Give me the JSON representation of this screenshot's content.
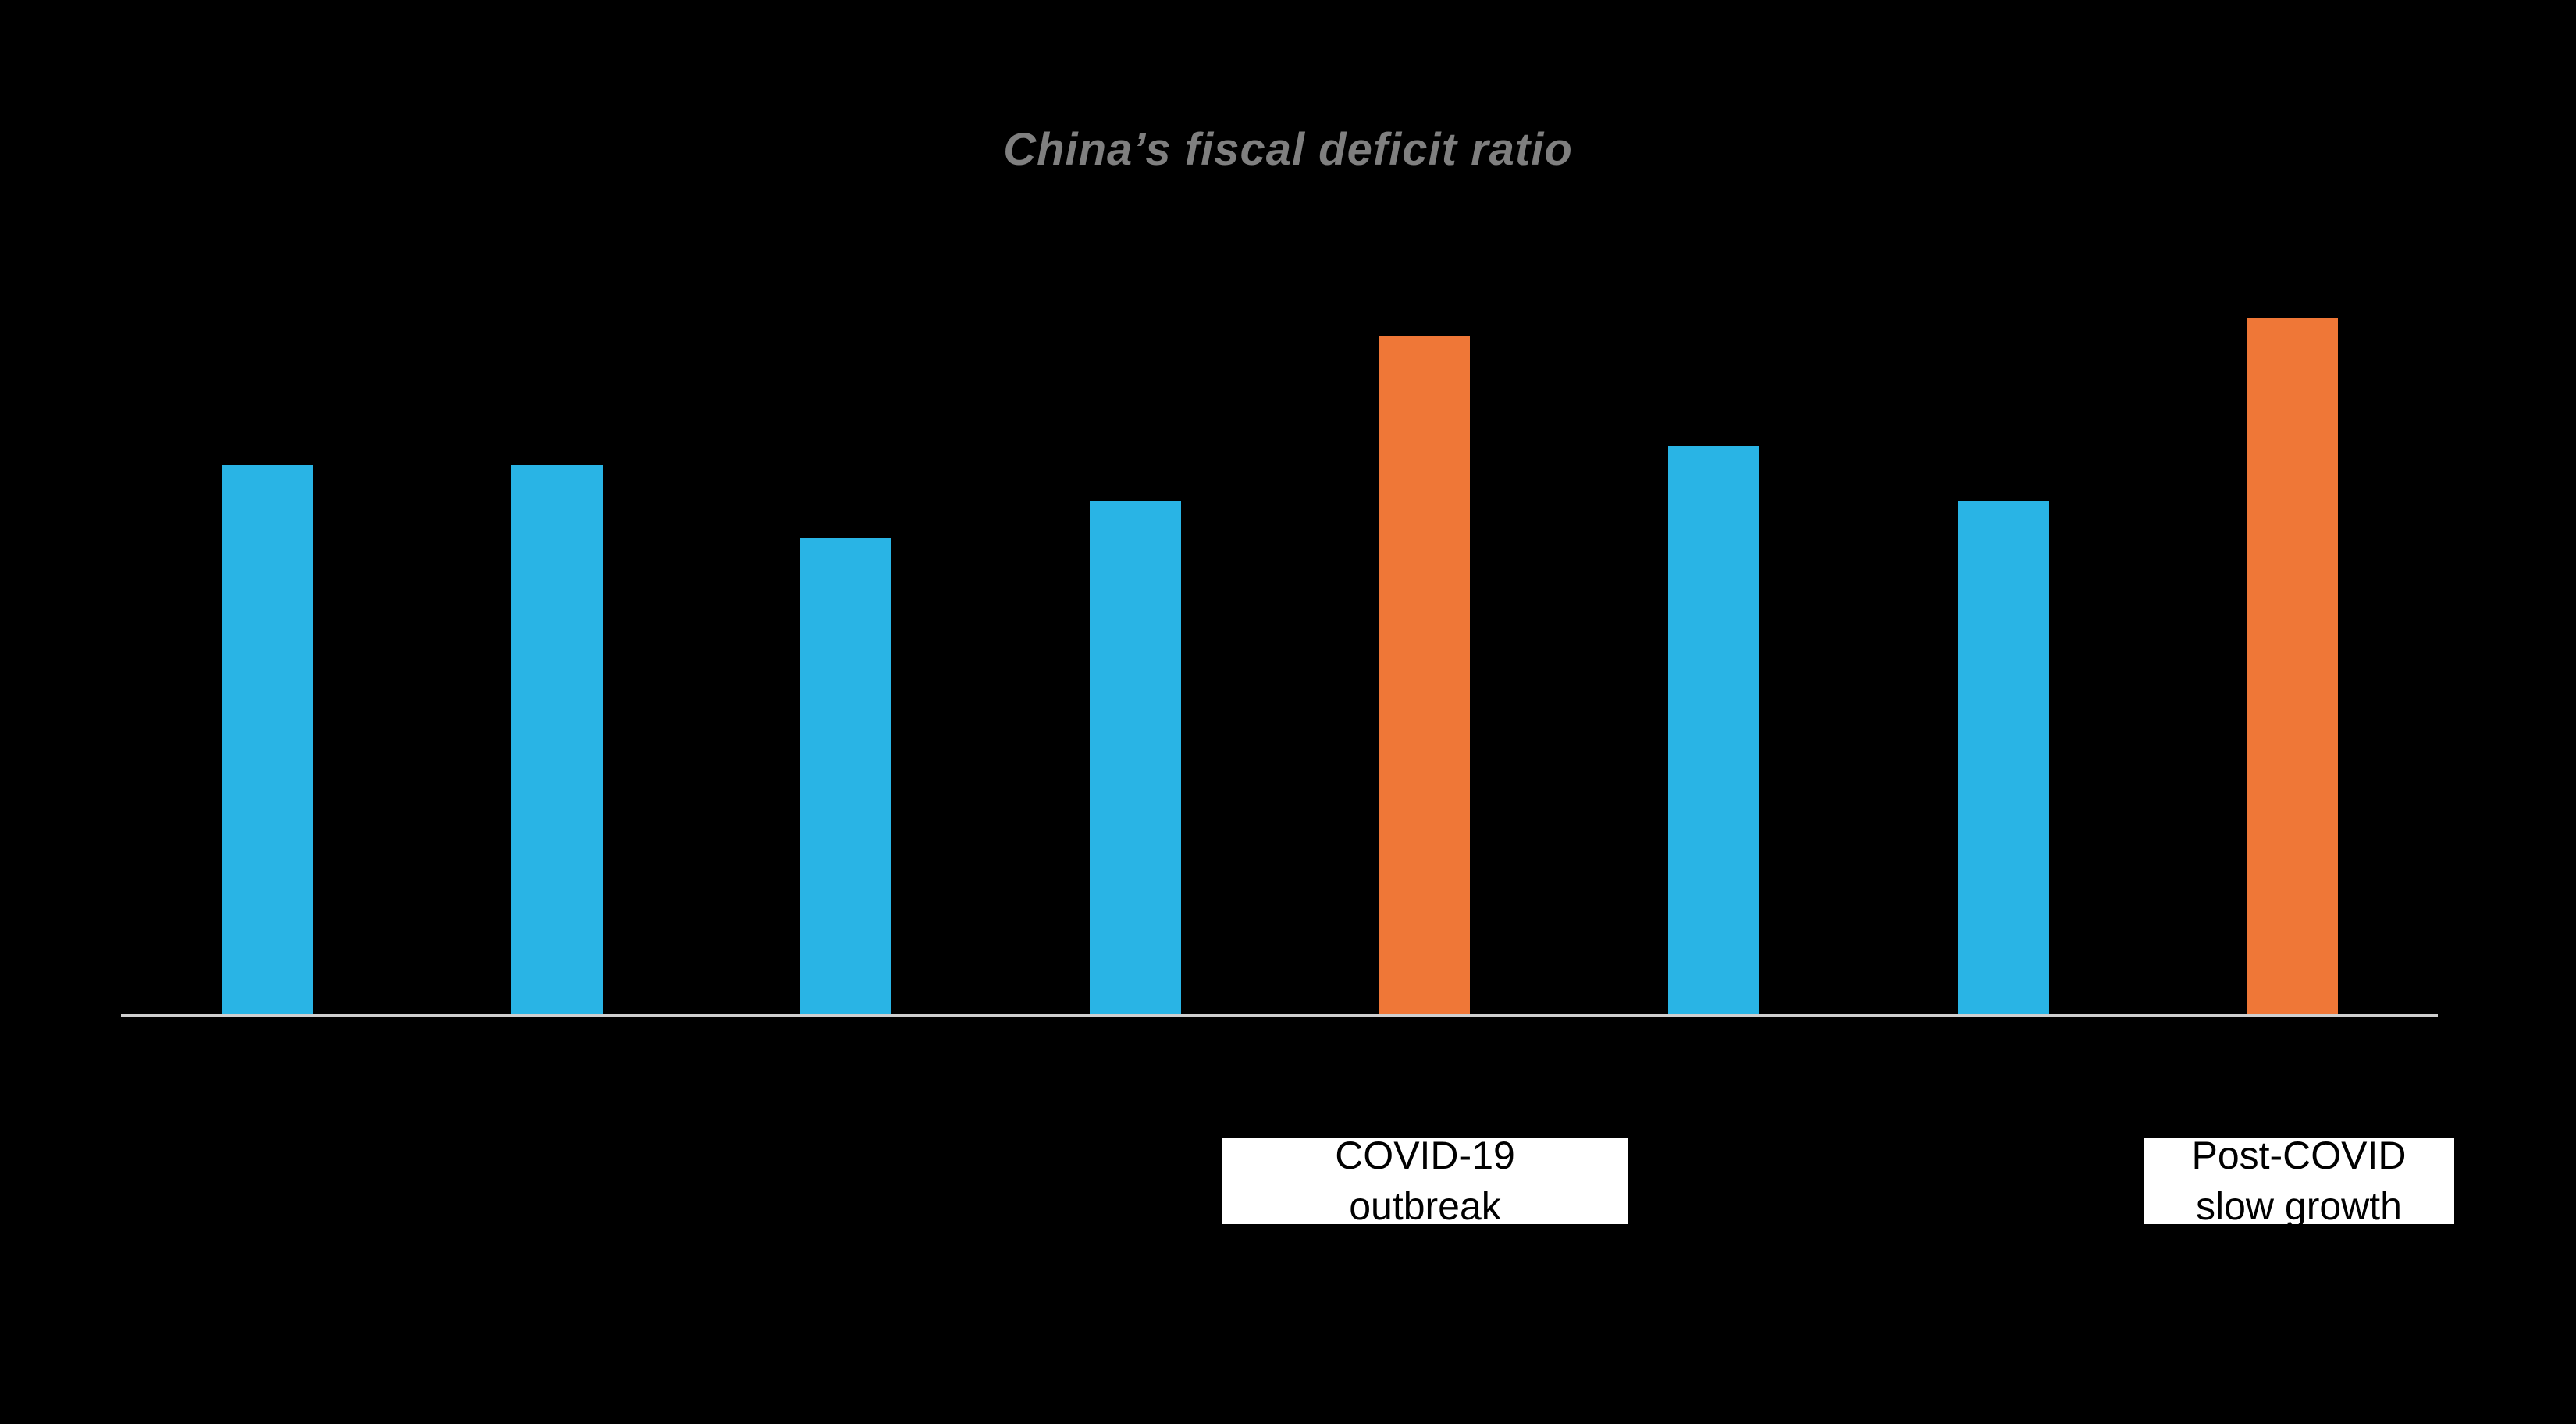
{
  "page": {
    "background_color": "#000000"
  },
  "chart_data": {
    "type": "bar",
    "title": "China’s fiscal deficit ratio",
    "title_color": "#7F7F7F",
    "values": [
      3.0,
      3.0,
      2.6,
      2.8,
      3.7,
      3.1,
      2.8,
      3.8
    ],
    "bar_colors": [
      "#29B4E5",
      "#29B4E5",
      "#29B4E5",
      "#29B4E5",
      "#EF7737",
      "#29B4E5",
      "#29B4E5",
      "#EF7737"
    ],
    "default_bar_color": "#29B4E5",
    "highlight_bar_color": "#EF7737",
    "axis_line_color": "#CFCFCF",
    "ylim": [
      0,
      4.3
    ],
    "grid": false,
    "legend": false,
    "x_tick_labels_visible": false,
    "y_tick_labels_visible": false,
    "annotations": [
      {
        "line1": "COVID-19",
        "line2": "outbreak",
        "target_bar_index": 4,
        "box_background": "#FFFFFF",
        "text_color": "#000000"
      },
      {
        "line1": "Post-COVID",
        "line2": "slow growth",
        "target_bar_index": 7,
        "box_background": "#FFFFFF",
        "text_color": "#000000"
      }
    ]
  }
}
